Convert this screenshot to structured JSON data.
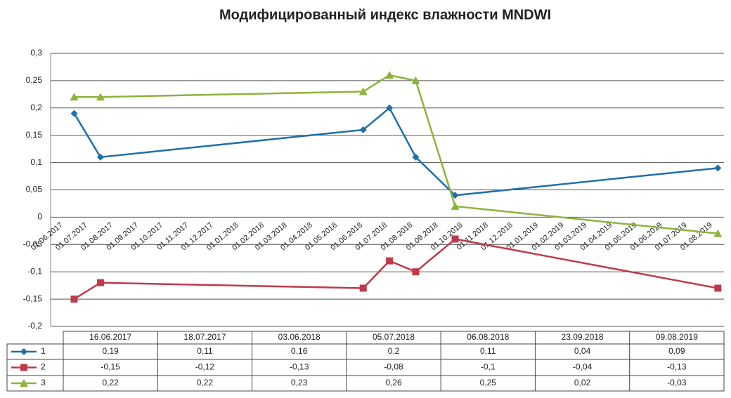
{
  "chart_data": {
    "type": "line",
    "title": "Модифицированный  индекс влажности MNDWI",
    "x": [
      "16.06.2017",
      "18.07.2017",
      "03.06.2018",
      "05.07.2018",
      "06.08.2018",
      "23.09.2018",
      "09.08.2019"
    ],
    "series": [
      {
        "name": "1",
        "color": "#1f6fa8",
        "marker": "diamond",
        "values": [
          0.19,
          0.11,
          0.16,
          0.2,
          0.11,
          0.04,
          0.09
        ],
        "value_labels": [
          "0,19",
          "0,11",
          "0,16",
          "0,2",
          "0,11",
          "0,04",
          "0,09"
        ]
      },
      {
        "name": "2",
        "color": "#c0394b",
        "marker": "square",
        "values": [
          -0.15,
          -0.12,
          -0.13,
          -0.08,
          -0.1,
          -0.04,
          -0.13
        ],
        "value_labels": [
          "-0,15",
          "-0,12",
          "-0,13",
          "-0,08",
          "-0,1",
          "-0,04",
          "-0,13"
        ]
      },
      {
        "name": "3",
        "color": "#8db33a",
        "marker": "triangle",
        "values": [
          0.22,
          0.22,
          0.23,
          0.26,
          0.25,
          0.02,
          -0.03
        ],
        "value_labels": [
          "0,22",
          "0,22",
          "0,23",
          "0,26",
          "0,25",
          "0,02",
          "-0,03"
        ]
      }
    ],
    "xlim": [
      "01.06.2017",
      "01.08.2019"
    ],
    "xticks": [
      "01.06.2017",
      "01.07.2017",
      "01.08.2017",
      "01.09.2017",
      "01.10.2017",
      "01.11.2017",
      "01.12.2017",
      "01.01.2018",
      "01.02.2018",
      "01.03.2018",
      "01.04.2018",
      "01.05.2018",
      "01.06.2018",
      "01.07.2018",
      "01.08.2018",
      "01.09.2018",
      "01.10.2018",
      "01.11.2018",
      "01.12.2018",
      "01.01.2019",
      "01.02.2019",
      "01.03.2019",
      "01.04.2019",
      "01.05.2019",
      "01.06.2019",
      "01.07.2019",
      "01.08.2019"
    ],
    "ylim": [
      -0.2,
      0.3
    ],
    "yticks": [
      {
        "value": 0.3,
        "label": "0,3"
      },
      {
        "value": 0.25,
        "label": "0,25"
      },
      {
        "value": 0.2,
        "label": "0,2"
      },
      {
        "value": 0.15,
        "label": "0,15"
      },
      {
        "value": 0.1,
        "label": "0,1"
      },
      {
        "value": 0.05,
        "label": "0,05"
      },
      0,
      {
        "value": -0.05,
        "label": "-0,05"
      },
      {
        "value": -0.1,
        "label": "-0,1"
      },
      {
        "value": -0.15,
        "label": "-0,15"
      },
      {
        "value": -0.2,
        "label": "-0,2"
      }
    ],
    "grid": true
  }
}
